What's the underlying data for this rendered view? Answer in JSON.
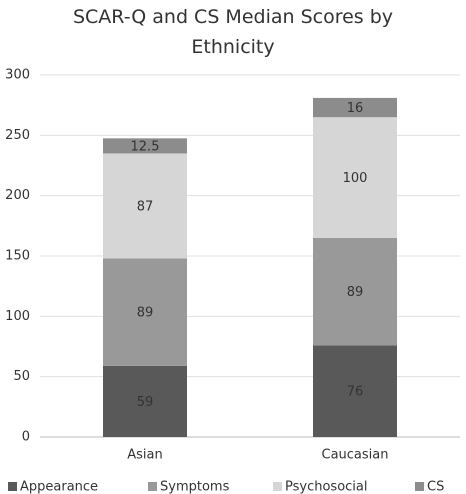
{
  "chart_data": {
    "type": "stacked_bar",
    "title": "SCAR-Q and CS Median Scores by Ethnicity",
    "categories": [
      "Asian",
      "Caucasian"
    ],
    "series": [
      {
        "name": "Appearance",
        "color": "#595959",
        "values": [
          59,
          76
        ]
      },
      {
        "name": "Symptoms",
        "color": "#999999",
        "values": [
          89,
          89
        ]
      },
      {
        "name": "Psychosocial",
        "color": "#d6d6d6",
        "values": [
          87,
          100
        ]
      },
      {
        "name": "CS",
        "color": "#8c8c8c",
        "values": [
          12.5,
          16
        ]
      }
    ],
    "ylim": [
      0,
      300
    ],
    "yticks": [
      0,
      50,
      100,
      150,
      200,
      250,
      300
    ],
    "grid": true,
    "legend": "bottom"
  }
}
